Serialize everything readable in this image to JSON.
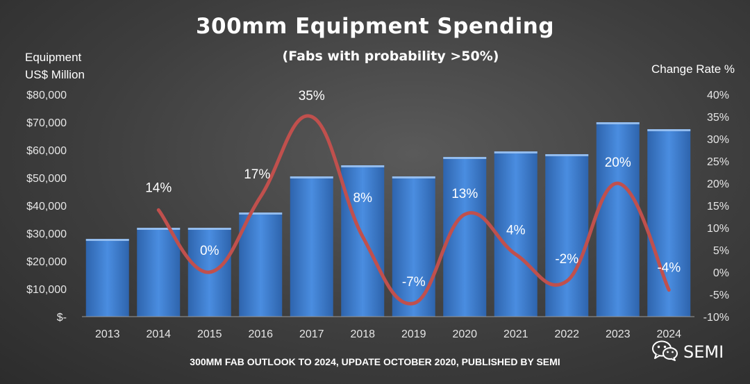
{
  "title": "300mm Equipment Spending",
  "subtitle": "(Fabs with probability >50%)",
  "left_axis_label_line1": "Equipment",
  "left_axis_label_line2": "US$ Million",
  "right_axis_label": "Change Rate %",
  "footer": "300MM FAB OUTLOOK TO 2024, UPDATE OCTOBER 2020, PUBLISHED BY SEMI",
  "brand": {
    "text": "SEMI",
    "icon": "wechat-icon"
  },
  "colors": {
    "bar": "#3a78c9",
    "line": "#c0504d"
  },
  "chart_data": {
    "type": "bar",
    "categories": [
      "2013",
      "2014",
      "2015",
      "2016",
      "2017",
      "2018",
      "2019",
      "2020",
      "2021",
      "2022",
      "2023",
      "2024"
    ],
    "series": [
      {
        "type": "bar",
        "axis": "left",
        "values": [
          28000,
          32000,
          32000,
          37500,
          50500,
          54500,
          50500,
          57500,
          59500,
          58500,
          70000,
          67500
        ]
      },
      {
        "type": "line",
        "axis": "right",
        "values": [
          null,
          14,
          0,
          17,
          35,
          8,
          -7,
          13,
          4,
          -2,
          20,
          -4
        ],
        "labels": [
          "",
          "14%",
          "0%",
          "17%",
          "35%",
          "8%",
          "-7%",
          "13%",
          "4%",
          "-2%",
          "20%",
          "-4%"
        ]
      }
    ],
    "y_left": {
      "min": 0,
      "max": 80000,
      "ticks": [
        "$-",
        "$10,000",
        "$20,000",
        "$30,000",
        "$40,000",
        "$50,000",
        "$60,000",
        "$70,000",
        "$80,000"
      ]
    },
    "y_right": {
      "min": -10,
      "max": 40,
      "ticks": [
        "-10%",
        "-5%",
        "0%",
        "5%",
        "10%",
        "15%",
        "20%",
        "25%",
        "30%",
        "35%",
        "40%"
      ]
    },
    "grid": false,
    "legend": "none"
  }
}
